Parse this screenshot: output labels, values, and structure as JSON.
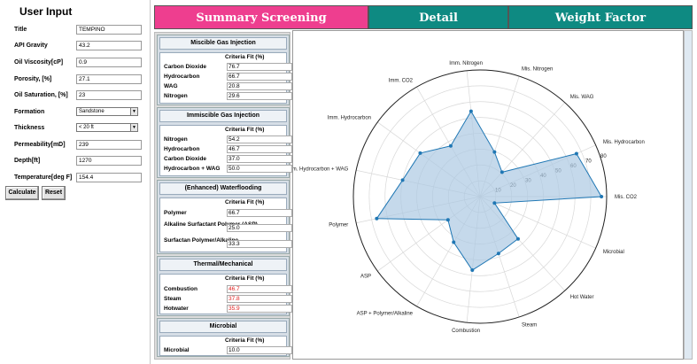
{
  "left_panel": {
    "title": "User Input",
    "fields": [
      {
        "label": "Title",
        "value": "TEMPINO"
      },
      {
        "label": "API Gravity",
        "value": "43.2"
      },
      {
        "label": "Oil Viscosity[cP]",
        "value": "0.9"
      },
      {
        "label": "Porosity, [%]",
        "value": "27.1"
      },
      {
        "label": "Oil Saturation, [%]",
        "value": "23"
      },
      {
        "label": "Formation",
        "value": "Sandstone"
      },
      {
        "label": "Thickness",
        "value": "< 20 ft"
      },
      {
        "label": "Permeability[mD]",
        "value": "239"
      },
      {
        "label": "Depth[ft]",
        "value": "1270"
      },
      {
        "label": "Temperature[deg F]",
        "value": "154.4"
      }
    ],
    "calculate_label": "Calculate",
    "reset_label": "Reset"
  },
  "tabs": [
    {
      "label": "Summary Screening",
      "color": "#ee3e8f"
    },
    {
      "label": "Detail",
      "color": "#0e8a82"
    },
    {
      "label": "Weight Factor",
      "color": "#0e8a82"
    }
  ],
  "groups": [
    {
      "title": "Miscible Gas Injection",
      "col_header": "Criteria Fit (%)",
      "rows": [
        {
          "label": "Carbon Dioxide",
          "value": "76.7",
          "red": false
        },
        {
          "label": "Hydrocarbon",
          "value": "66.7",
          "red": false
        },
        {
          "label": "WAG",
          "value": "20.8",
          "red": false
        },
        {
          "label": "Nitrogen",
          "value": "29.6",
          "red": false
        }
      ]
    },
    {
      "title": "Immiscible Gas Injection",
      "col_header": "Criteria Fit (%)",
      "rows": [
        {
          "label": "Nitrogen",
          "value": "54.2",
          "red": false
        },
        {
          "label": "Hydrocarbon",
          "value": "46.7",
          "red": false
        },
        {
          "label": "Carbon Dioxide",
          "value": "37.0",
          "red": false
        },
        {
          "label": "Hydrocarbon + WAG",
          "value": "50.0",
          "red": false
        }
      ]
    },
    {
      "title": "(Enhanced) Waterflooding",
      "col_header": "Criteria Fit (%)",
      "rows": [
        {
          "label": "Polymer",
          "value": "66.7",
          "red": false
        },
        {
          "label": "Alkaline Surfactant Polymer (ASP)",
          "value": "25.0",
          "red": false
        },
        {
          "label": "Surfactan Polymer/Alkaline",
          "value": "33.3",
          "red": false
        }
      ]
    },
    {
      "title": "Thermal/Mechanical",
      "col_header": "Criteria Fit (%)",
      "rows": [
        {
          "label": "Combustion",
          "value": "46.7",
          "red": true
        },
        {
          "label": "Steam",
          "value": "37.8",
          "red": true
        },
        {
          "label": "Hotwater",
          "value": "35.9",
          "red": true
        }
      ]
    },
    {
      "title": "Microbial",
      "col_header": "Criteria Fit (%)",
      "rows": [
        {
          "label": "Microbial",
          "value": "10.0",
          "red": false
        }
      ]
    }
  ],
  "chart_data": {
    "type": "radar",
    "categories": [
      "Mis. CO2",
      "Mis. Hydrocarbon",
      "Mis. WAG",
      "Mis. Nitrogen",
      "Imm. Nitrogen",
      "Imm. CO2",
      "Imm. Hydrocarbon",
      "Imm. Hydrocarbon + WAG",
      "Polymer",
      "ASP",
      "ASP + Polymer/Alkaline",
      "Combustion",
      "Steam",
      "Hot Water",
      "Microbial"
    ],
    "values": [
      76.7,
      66.7,
      20.8,
      29.6,
      54.2,
      37.0,
      46.7,
      50.0,
      66.7,
      25.0,
      33.3,
      46.7,
      37.8,
      35.9,
      10.0
    ],
    "rticks": [
      10,
      20,
      30,
      40,
      50,
      60,
      70,
      80
    ],
    "rlim": [
      0,
      80
    ],
    "grid": true,
    "colors": {
      "line": "#1f77b4",
      "fill": "#adc9e3"
    }
  }
}
